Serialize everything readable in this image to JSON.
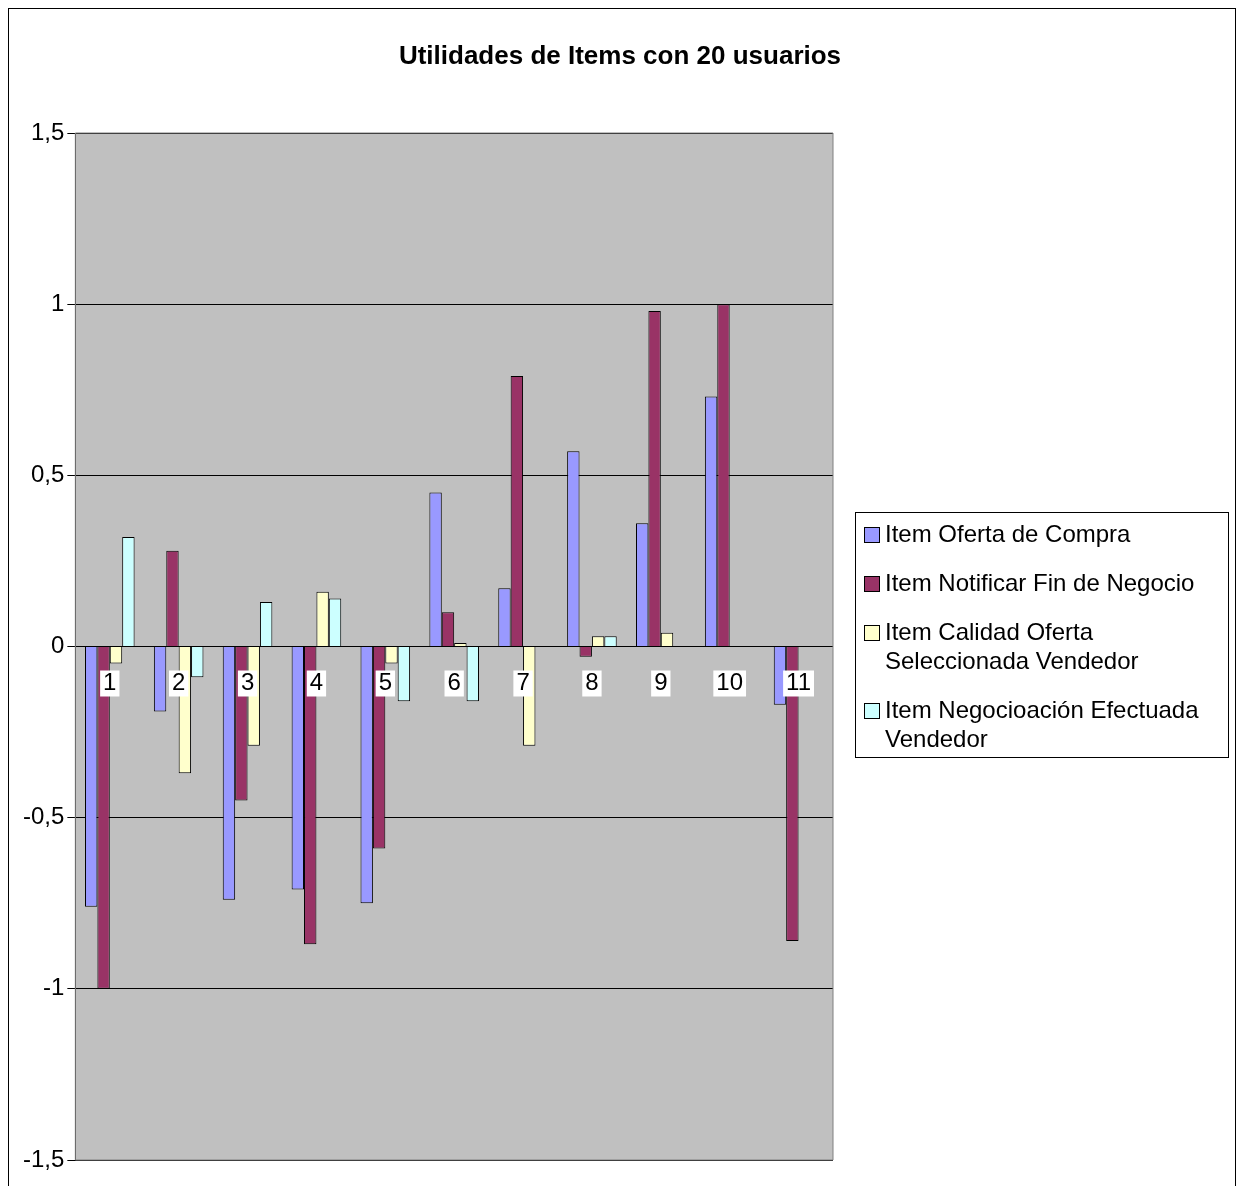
{
  "chart_data": {
    "type": "bar",
    "title": "Utilidades de Items con 20 usuarios",
    "categories": [
      "1",
      "2",
      "3",
      "4",
      "5",
      "6",
      "7",
      "8",
      "9",
      "10",
      "11"
    ],
    "series": [
      {
        "name": "Item Oferta de Compra",
        "color": "#9999ff",
        "values": [
          -0.76,
          -0.19,
          -0.74,
          -0.71,
          -0.75,
          0.45,
          0.17,
          0.57,
          0.36,
          0.73,
          -0.17
        ]
      },
      {
        "name": "Item Notificar Fin de Negocio",
        "color": "#993366",
        "values": [
          -1.0,
          0.28,
          -0.45,
          -0.87,
          -0.59,
          0.1,
          0.79,
          -0.03,
          0.98,
          1.0,
          -0.86
        ]
      },
      {
        "name": "Item Calidad Oferta Seleccionada Vendedor",
        "color": "#ffffcc",
        "values": [
          -0.05,
          -0.37,
          -0.29,
          0.16,
          -0.05,
          0.01,
          -0.29,
          0.03,
          0.04,
          0,
          0
        ]
      },
      {
        "name": "Item Negocioación Efectuada Vendedor",
        "color": "#ccffff",
        "values": [
          0.32,
          -0.09,
          0.13,
          0.14,
          -0.16,
          -0.16,
          0,
          0.03,
          0,
          0,
          0
        ]
      }
    ],
    "ylim": [
      -1.5,
      1.5
    ],
    "yticks": [
      {
        "value": -1.5,
        "label": "-1,5"
      },
      -1,
      {
        "value": -0.5,
        "label": "-0,5"
      },
      0,
      {
        "value": 0.5,
        "label": "0,5"
      },
      1,
      {
        "value": 1.5,
        "label": "1,5"
      }
    ],
    "grid": "y",
    "legend": "right"
  }
}
